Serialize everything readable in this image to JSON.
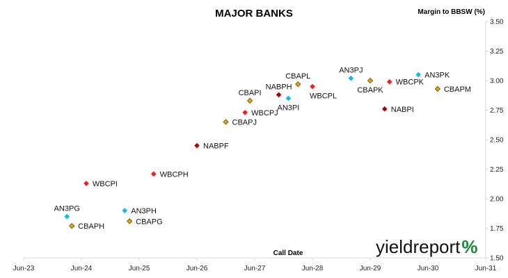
{
  "chart_data": {
    "type": "scatter",
    "title": "MAJOR BANKS",
    "ylabel": "Margin to BBSW (%)",
    "xlabel": "Call Date",
    "x_ticks": [
      "Jun-23",
      "Jun-24",
      "Jun-25",
      "Jun-26",
      "Jun-27",
      "Jun-28",
      "Jun-29",
      "Jun-30",
      "Jun-31"
    ],
    "y_ticks": [
      "1.50",
      "1.75",
      "2.00",
      "2.25",
      "2.50",
      "2.75",
      "3.00",
      "3.25",
      "3.50"
    ],
    "ylim": [
      1.5,
      3.5
    ],
    "xlim": [
      "2023-06-01",
      "2031-06-01"
    ],
    "grid": false,
    "colors": {
      "ANZ": "#1ab7ea",
      "CBA": "#e0a21a",
      "WBC": "#ff1a1a",
      "NAB": "#b00000"
    },
    "points": [
      {
        "label": "AN3PG",
        "x": "2024-03",
        "y": 1.85,
        "issuer": "ANZ",
        "label_pos": "above"
      },
      {
        "label": "CBAPH",
        "x": "2024-04",
        "y": 1.77,
        "issuer": "CBA",
        "label_pos": "right"
      },
      {
        "label": "WBCPI",
        "x": "2024-07",
        "y": 2.13,
        "issuer": "WBC",
        "label_pos": "right"
      },
      {
        "label": "AN3PH",
        "x": "2025-03",
        "y": 1.9,
        "issuer": "ANZ",
        "label_pos": "right"
      },
      {
        "label": "CBAPG",
        "x": "2025-04",
        "y": 1.81,
        "issuer": "CBA",
        "label_pos": "right"
      },
      {
        "label": "WBCPH",
        "x": "2025-09",
        "y": 2.21,
        "issuer": "WBC",
        "label_pos": "right"
      },
      {
        "label": "NABPF",
        "x": "2026-06",
        "y": 2.45,
        "issuer": "NAB",
        "label_pos": "right"
      },
      {
        "label": "CBAPJ",
        "x": "2026-12",
        "y": 2.65,
        "issuer": "CBA",
        "label_pos": "right"
      },
      {
        "label": "WBCPJ",
        "x": "2027-04",
        "y": 2.73,
        "issuer": "WBC",
        "label_pos": "right"
      },
      {
        "label": "CBAPI",
        "x": "2027-05",
        "y": 2.83,
        "issuer": "CBA",
        "label_pos": "above"
      },
      {
        "label": "NABPH",
        "x": "2027-11",
        "y": 2.88,
        "issuer": "NAB",
        "label_pos": "above"
      },
      {
        "label": "CBAPL",
        "x": "2028-03",
        "y": 2.97,
        "issuer": "CBA",
        "label_pos": "above"
      },
      {
        "label": "AN3PI",
        "x": "2028-01",
        "y": 2.85,
        "issuer": "ANZ",
        "label_pos": "below"
      },
      {
        "label": "WBCPL",
        "x": "2028-06",
        "y": 2.95,
        "issuer": "WBC",
        "label_pos": "below-right"
      },
      {
        "label": "AN3PJ",
        "x": "2029-02",
        "y": 3.02,
        "issuer": "ANZ",
        "label_pos": "above"
      },
      {
        "label": "CBAPK",
        "x": "2029-06",
        "y": 3.0,
        "issuer": "CBA",
        "label_pos": "below"
      },
      {
        "label": "WBCPK",
        "x": "2029-10",
        "y": 2.99,
        "issuer": "WBC",
        "label_pos": "right"
      },
      {
        "label": "NABPI",
        "x": "2029-09",
        "y": 2.76,
        "issuer": "NAB",
        "label_pos": "right"
      },
      {
        "label": "AN3PK",
        "x": "2030-04",
        "y": 3.05,
        "issuer": "ANZ",
        "label_pos": "right"
      },
      {
        "label": "CBAPM",
        "x": "2030-08",
        "y": 2.93,
        "issuer": "CBA",
        "label_pos": "right"
      }
    ]
  },
  "logo": {
    "text": "yieldreport",
    "pct": "%"
  }
}
